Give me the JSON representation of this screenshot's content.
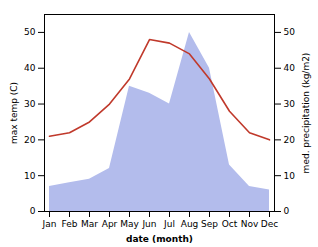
{
  "chart_data": {
    "type": "line",
    "xlabel": "date (month)",
    "ylabel": "max temp (C)",
    "y2label": "med. precipitation (kg/m2)",
    "categories": [
      "Jan",
      "Feb",
      "Mar",
      "Apr",
      "May",
      "Jun",
      "Jul",
      "Aug",
      "Sep",
      "Oct",
      "Nov",
      "Dec"
    ],
    "series": [
      {
        "type": "area",
        "axis": "y2",
        "color": "#b3bcec",
        "values": [
          7,
          8,
          9,
          12,
          35,
          33,
          30,
          50,
          40,
          13,
          7,
          6
        ]
      },
      {
        "type": "line",
        "color": "#c0392b",
        "values": [
          21,
          22,
          25,
          30,
          37,
          48,
          47,
          44,
          37,
          28,
          22,
          20
        ]
      }
    ],
    "ylim": [
      0,
      55
    ],
    "yticks": [
      0,
      10,
      20,
      30,
      40,
      50
    ],
    "y2lim": [
      0,
      55
    ],
    "y2ticks": [
      0,
      10,
      20,
      30,
      40,
      50
    ],
    "grid": false
  }
}
